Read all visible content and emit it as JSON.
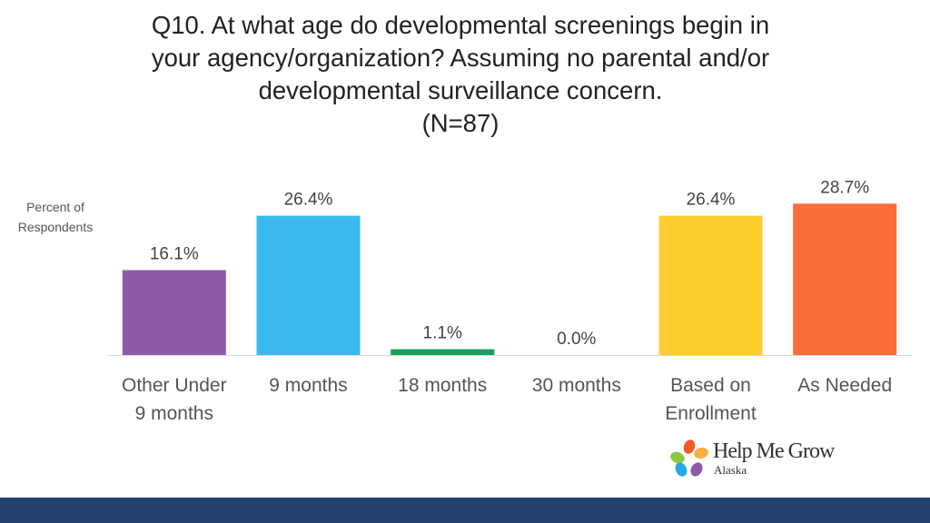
{
  "title": {
    "line1": "Q10. At what age do developmental screenings begin in",
    "line2": "your agency/organization? Assuming no parental and/or",
    "line3": "developmental surveillance concern.",
    "line4": "(N=87)"
  },
  "chart_data": {
    "type": "bar",
    "title": "Q10. At what age do developmental screenings begin in your agency/organization? Assuming no parental and/or developmental surveillance concern. (N=87)",
    "ylabel": "Percent of Respondents",
    "ylabel_line1": "Percent of",
    "ylabel_line2": "Respondents",
    "xlabel": "",
    "ylim": [
      0,
      30
    ],
    "grid": false,
    "categories": [
      "Other Under 9 months",
      "9 months",
      "18 months",
      "30 months",
      "Based on Enrollment",
      "As Needed"
    ],
    "category_lines": [
      [
        "Other Under",
        "9 months"
      ],
      [
        "9 months"
      ],
      [
        "18 months"
      ],
      [
        "30 months"
      ],
      [
        "Based on",
        "Enrollment"
      ],
      [
        "As Needed"
      ]
    ],
    "values": [
      16.1,
      26.4,
      1.1,
      0.0,
      26.4,
      28.7
    ],
    "value_labels": [
      "16.1%",
      "26.4%",
      "1.1%",
      "0.0%",
      "26.4%",
      "28.7%"
    ],
    "colors": [
      "#8e5aa8",
      "#3bb9ef",
      "#16a05f",
      "#999999",
      "#ffcf2f",
      "#fb6d3a"
    ]
  },
  "logo": {
    "name": "Help Me Grow",
    "subtitle": "Alaska",
    "colors": [
      "#f15a29",
      "#fbb040",
      "#8dc63f",
      "#27aae1",
      "#8e5aa8"
    ]
  },
  "footer": {
    "color": "#23406f"
  }
}
